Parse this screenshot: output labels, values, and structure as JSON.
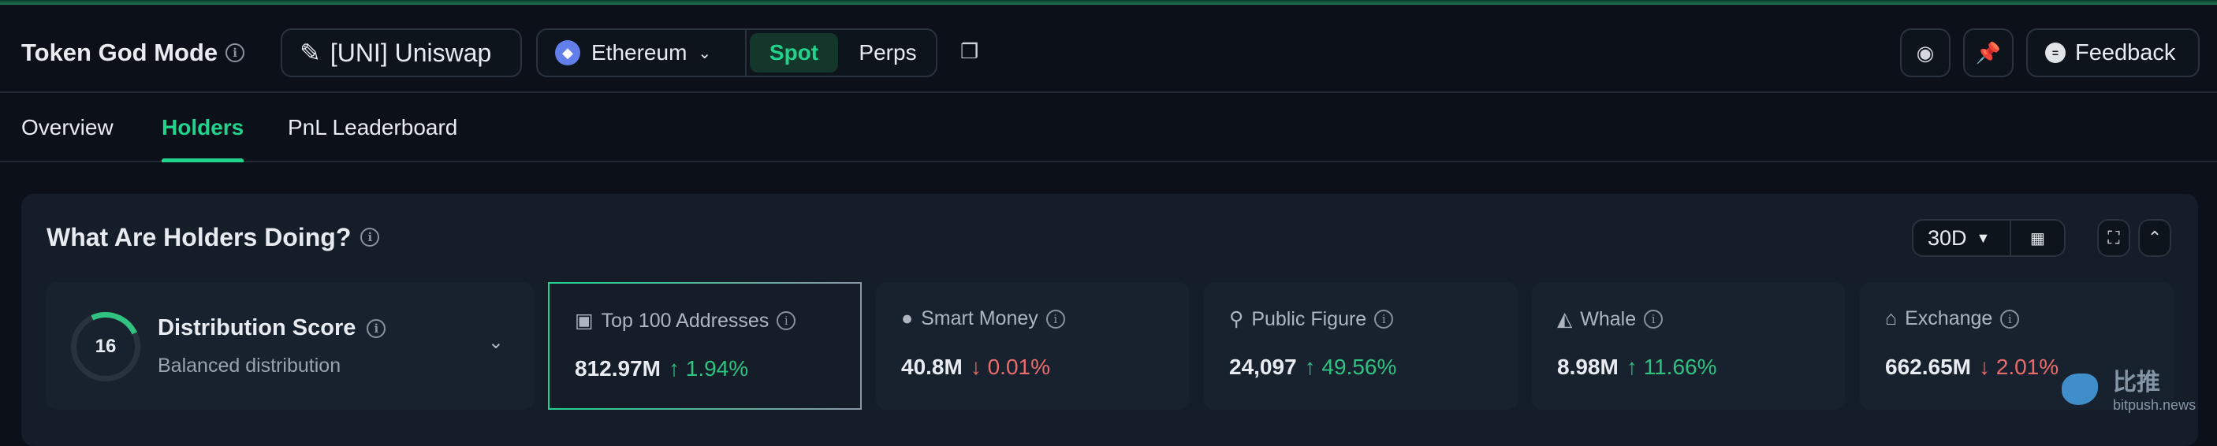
{
  "header": {
    "title": "Token God Mode",
    "token_label": "[UNI] Uniswap",
    "chain": "Ethereum",
    "market_modes": [
      "Spot",
      "Perps"
    ],
    "active_mode": "Spot",
    "feedback_label": "Feedback",
    "icons": [
      "info-icon",
      "pencil-icon",
      "ethereum-icon",
      "chevron-down-icon",
      "copy-icon",
      "eye-icon",
      "pin-icon",
      "chat-icon"
    ]
  },
  "tabs": [
    {
      "label": "Overview",
      "active": false
    },
    {
      "label": "Holders",
      "active": true
    },
    {
      "label": "PnL Leaderboard",
      "active": false
    }
  ],
  "panel": {
    "title": "What Are Holders Doing?",
    "range": "30D",
    "distribution": {
      "score": "16",
      "title": "Distribution Score",
      "subtitle": "Balanced distribution"
    },
    "cards": [
      {
        "label": "Top 100 Addresses",
        "icon": "money-icon",
        "value": "812.97M",
        "change": "1.94%",
        "direction": "up",
        "selected": true
      },
      {
        "label": "Smart Money",
        "icon": "sunglasses-icon",
        "value": "40.8M",
        "change": "0.01%",
        "direction": "down"
      },
      {
        "label": "Public Figure",
        "icon": "person-icon",
        "value": "24,097",
        "change": "49.56%",
        "direction": "up"
      },
      {
        "label": "Whale",
        "icon": "whale-icon",
        "value": "8.98M",
        "change": "11.66%",
        "direction": "up"
      },
      {
        "label": "Exchange",
        "icon": "bank-icon",
        "value": "662.65M",
        "change": "2.01%",
        "direction": "down"
      }
    ]
  },
  "watermark": {
    "cn": "比推",
    "site": "bitpush.news"
  },
  "colors": {
    "accent": "#22d38e",
    "up": "#2fc281",
    "down": "#ea6b6b",
    "background": "#0c1119",
    "panel": "#141d28"
  }
}
